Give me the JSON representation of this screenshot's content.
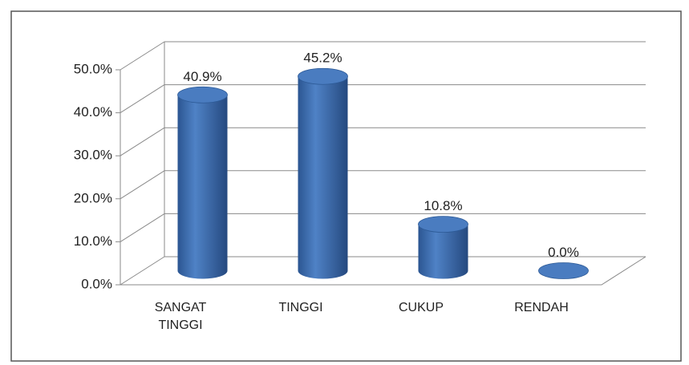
{
  "chart_data": {
    "type": "bar",
    "shape": "cylinder",
    "categories": [
      "SANGAT TINGGI",
      "TINGGI",
      "CUKUP",
      "RENDAH"
    ],
    "values": [
      40.9,
      45.2,
      10.8,
      0.0
    ],
    "value_labels": [
      "40.9%",
      "45.2%",
      "10.8%",
      "0.0%"
    ],
    "color": "#3f6fb0",
    "ylim": [
      0,
      50
    ],
    "yticks": [
      {
        "value": 0,
        "label": "0.0%"
      },
      {
        "value": 10,
        "label": "10.0%"
      },
      {
        "value": 20,
        "label": "20.0%"
      },
      {
        "value": 30,
        "label": "30.0%"
      },
      {
        "value": 40,
        "label": "40.0%"
      },
      {
        "value": 50,
        "label": "50.0%"
      }
    ],
    "grid": true
  }
}
